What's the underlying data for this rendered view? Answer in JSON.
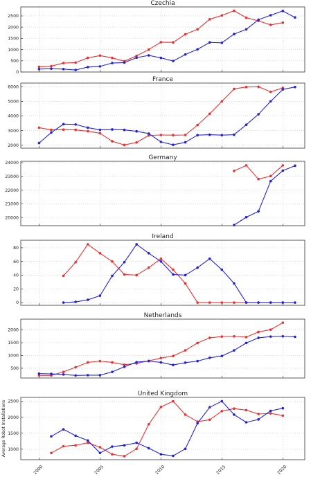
{
  "figure": {
    "ylabel": "Average Robot Installations",
    "xticks": [
      2000,
      2005,
      2010,
      2015,
      2020
    ],
    "xlim": [
      1998.5,
      2021.8
    ],
    "colors": {
      "red": "#ee2f2f",
      "blue": "#2222dd"
    }
  },
  "chart_data": [
    {
      "type": "line",
      "title": "Czechia",
      "ylim": [
        0,
        2900
      ],
      "yticks": [
        0,
        500,
        1000,
        1500,
        2000,
        2500
      ],
      "series": [
        {
          "color": "red",
          "x": [
            2000,
            2001,
            2002,
            2003,
            2004,
            2005,
            2006,
            2007,
            2008,
            2009,
            2010,
            2011,
            2012,
            2013,
            2014,
            2015,
            2016,
            2017,
            2018,
            2019,
            2020
          ],
          "values": [
            230,
            260,
            400,
            420,
            630,
            730,
            630,
            480,
            720,
            1000,
            1330,
            1320,
            1680,
            1900,
            2350,
            2520,
            2730,
            2420,
            2280,
            2100,
            2200
          ]
        },
        {
          "color": "blue",
          "x": [
            2000,
            2001,
            2002,
            2003,
            2004,
            2005,
            2006,
            2007,
            2008,
            2009,
            2010,
            2011,
            2012,
            2013,
            2014,
            2015,
            2016,
            2017,
            2018,
            2019,
            2020,
            2021
          ],
          "values": [
            130,
            150,
            130,
            90,
            220,
            250,
            400,
            420,
            640,
            740,
            630,
            490,
            780,
            1010,
            1320,
            1300,
            1690,
            1900,
            2330,
            2530,
            2720,
            2430
          ]
        }
      ]
    },
    {
      "type": "line",
      "title": "France",
      "ylim": [
        1800,
        6250
      ],
      "yticks": [
        2000,
        3000,
        4000,
        5000,
        6000
      ],
      "series": [
        {
          "color": "red",
          "x": [
            2000,
            2001,
            2002,
            2003,
            2004,
            2005,
            2006,
            2007,
            2008,
            2009,
            2010,
            2011,
            2012,
            2013,
            2014,
            2015,
            2016,
            2017,
            2018,
            2019,
            2020
          ],
          "values": [
            3200,
            3050,
            3070,
            3050,
            2960,
            2820,
            2270,
            2020,
            2190,
            2670,
            2700,
            2690,
            2700,
            3380,
            4150,
            5000,
            5850,
            5980,
            6000,
            5650,
            5920
          ]
        },
        {
          "color": "blue",
          "x": [
            2000,
            2001,
            2002,
            2003,
            2004,
            2005,
            2006,
            2007,
            2008,
            2009,
            2010,
            2011,
            2012,
            2013,
            2014,
            2015,
            2016,
            2017,
            2018,
            2019,
            2020,
            2021
          ],
          "values": [
            2150,
            2870,
            3440,
            3420,
            3200,
            3050,
            3080,
            3050,
            2950,
            2800,
            2230,
            2030,
            2200,
            2690,
            2720,
            2690,
            2720,
            3400,
            4120,
            5000,
            5820,
            5980
          ]
        }
      ]
    },
    {
      "type": "line",
      "title": "Germany",
      "ylim": [
        19400,
        24100
      ],
      "yticks": [
        20000,
        21000,
        22000,
        23000,
        24000
      ],
      "series": [
        {
          "color": "red",
          "x": [
            2016,
            2017,
            2018,
            2019,
            2020
          ],
          "values": [
            23400,
            23800,
            22800,
            23020,
            23800
          ]
        },
        {
          "color": "blue",
          "x": [
            2016,
            2017,
            2018,
            2019,
            2020,
            2021
          ],
          "values": [
            19450,
            20020,
            20450,
            22650,
            23420,
            23780
          ]
        }
      ]
    },
    {
      "type": "line",
      "title": "Ireland",
      "ylim": [
        -4,
        91
      ],
      "yticks": [
        0,
        20,
        40,
        60,
        80
      ],
      "series": [
        {
          "color": "red",
          "x": [
            2002,
            2003,
            2004,
            2005,
            2006,
            2007,
            2008,
            2009,
            2010,
            2011,
            2012,
            2013,
            2014,
            2015,
            2016,
            2017,
            2018,
            2019,
            2020
          ],
          "values": [
            39,
            59,
            85,
            72,
            60,
            41,
            40,
            51,
            64,
            48,
            28,
            0,
            0,
            0,
            0,
            0,
            0,
            0,
            0
          ]
        },
        {
          "color": "blue",
          "x": [
            2002,
            2003,
            2004,
            2005,
            2006,
            2007,
            2008,
            2009,
            2010,
            2011,
            2012,
            2013,
            2014,
            2015,
            2016,
            2017,
            2018,
            2019,
            2020,
            2021
          ],
          "values": [
            0,
            1,
            4,
            10,
            39,
            59,
            85,
            72,
            60,
            41,
            40,
            51,
            64,
            48,
            28,
            0,
            0,
            0,
            0,
            0
          ]
        }
      ]
    },
    {
      "type": "line",
      "title": "Netherlands",
      "ylim": [
        120,
        2420
      ],
      "yticks": [
        500,
        1000,
        1500,
        2000
      ],
      "series": [
        {
          "color": "red",
          "x": [
            2000,
            2001,
            2002,
            2003,
            2004,
            2005,
            2006,
            2007,
            2008,
            2009,
            2010,
            2011,
            2012,
            2013,
            2014,
            2015,
            2016,
            2017,
            2018,
            2019,
            2020
          ],
          "values": [
            220,
            220,
            360,
            540,
            730,
            780,
            730,
            640,
            690,
            790,
            900,
            980,
            1200,
            1490,
            1690,
            1740,
            1750,
            1720,
            1920,
            2010,
            2280
          ]
        },
        {
          "color": "blue",
          "x": [
            2000,
            2001,
            2002,
            2003,
            2004,
            2005,
            2006,
            2007,
            2008,
            2009,
            2010,
            2011,
            2012,
            2013,
            2014,
            2015,
            2016,
            2017,
            2018,
            2019,
            2020,
            2021
          ],
          "values": [
            290,
            280,
            260,
            220,
            230,
            230,
            360,
            560,
            740,
            780,
            730,
            630,
            720,
            780,
            910,
            980,
            1200,
            1490,
            1690,
            1740,
            1750,
            1730
          ]
        }
      ]
    },
    {
      "type": "line",
      "title": "United Kingdom",
      "ylabel": "Average Robot Installations",
      "ylim": [
        670,
        2620
      ],
      "yticks": [
        1000,
        1500,
        2000,
        2500
      ],
      "series": [
        {
          "color": "red",
          "x": [
            2001,
            2002,
            2003,
            2004,
            2005,
            2006,
            2007,
            2008,
            2009,
            2010,
            2011,
            2012,
            2013,
            2014,
            2015,
            2016,
            2017,
            2018,
            2019,
            2020
          ],
          "values": [
            880,
            1090,
            1120,
            1200,
            1060,
            840,
            780,
            1010,
            1780,
            2320,
            2500,
            2080,
            1860,
            1920,
            2190,
            2270,
            2220,
            2100,
            2120,
            2050
          ]
        },
        {
          "color": "blue",
          "x": [
            2001,
            2002,
            2003,
            2004,
            2005,
            2006,
            2007,
            2008,
            2009,
            2010,
            2011,
            2012,
            2013,
            2014,
            2015,
            2016,
            2017,
            2018,
            2019,
            2020
          ],
          "values": [
            1400,
            1620,
            1420,
            1270,
            880,
            1080,
            1120,
            1200,
            1030,
            840,
            790,
            1010,
            1810,
            2310,
            2500,
            2080,
            1840,
            1930,
            2200,
            2280
          ]
        }
      ]
    }
  ]
}
